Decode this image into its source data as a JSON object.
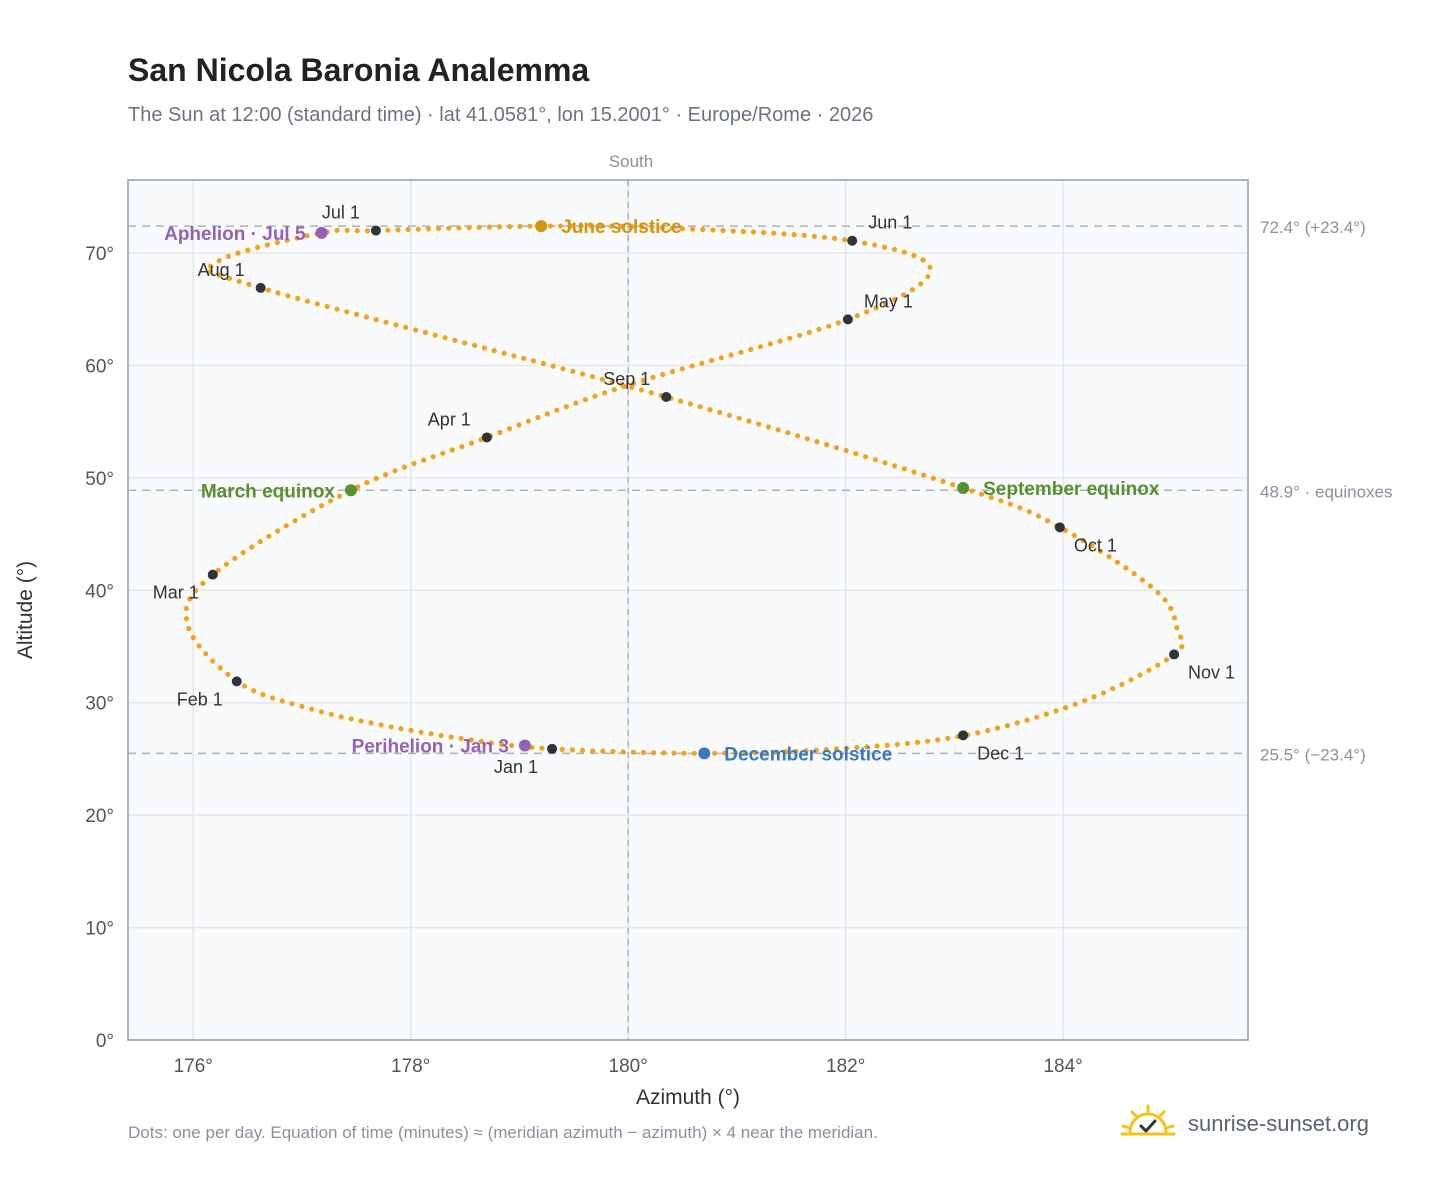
{
  "title": "San Nicola Baronia Analemma",
  "subtitle": "The Sun at 12:00 (standard time) · lat 41.0581°, lon 15.2001° · Europe/Rome · 2026",
  "footnote": "Dots: one per day. Equation of time (minutes) ≈ (meridian azimuth − azimuth) × 4 near the meridian.",
  "brand": {
    "name": "sunrise-sunset.org",
    "icon": "sun-check-icon"
  },
  "colors": {
    "curve": "#f2a31c",
    "month_dot": "#2f343b",
    "equinox": "#5a8f2e",
    "june_solstice": "#d4950c",
    "december_solstice": "#3a78c0",
    "aphelion_perihelion": "#9461b8",
    "plot_bg": "#f8fafc",
    "grid": "#e3e7ec",
    "frame": "#9aa3af"
  },
  "chart_data": {
    "type": "scatter",
    "xlabel": "Azimuth (°)",
    "ylabel": "Altitude (°)",
    "xlim": [
      175.4,
      185.7
    ],
    "ylim": [
      0,
      76.5
    ],
    "x_ticks": [
      "176°",
      "178°",
      "180°",
      "182°",
      "184°"
    ],
    "x_tick_values": [
      176,
      178,
      180,
      182,
      184
    ],
    "y_ticks": [
      "0°",
      "10°",
      "20°",
      "30°",
      "40°",
      "50°",
      "60°",
      "70°"
    ],
    "y_tick_values": [
      0,
      10,
      20,
      30,
      40,
      50,
      60,
      70
    ],
    "grid": true,
    "south_label": "South",
    "meridian_azimuth": 180,
    "reference_lines": [
      {
        "altitude": 72.4,
        "label": "72.4° (+23.4°)"
      },
      {
        "altitude": 48.9,
        "label": "48.9° · equinoxes"
      },
      {
        "altitude": 25.5,
        "label": "25.5° (−23.4°)"
      }
    ],
    "curve_anchors": [
      [
        179.3,
        25.9
      ],
      [
        178.55,
        26.7
      ],
      [
        177.8,
        27.9
      ],
      [
        177.1,
        29.4
      ],
      [
        176.42,
        31.8
      ],
      [
        175.95,
        36.9
      ],
      [
        176.18,
        41.4
      ],
      [
        177.45,
        48.9
      ],
      [
        178.7,
        53.6
      ],
      [
        179.98,
        58.2
      ],
      [
        182.02,
        64.1
      ],
      [
        182.78,
        68.5
      ],
      [
        182.05,
        71.1
      ],
      [
        180.45,
        72.2
      ],
      [
        179.2,
        72.4
      ],
      [
        177.68,
        72.0
      ],
      [
        177.18,
        71.8
      ],
      [
        176.22,
        69.2
      ],
      [
        176.62,
        66.9
      ],
      [
        180.35,
        57.2
      ],
      [
        183.08,
        49.1
      ],
      [
        183.97,
        45.6
      ],
      [
        184.85,
        40.0
      ],
      [
        185.05,
        36.5
      ],
      [
        185.02,
        34.3
      ],
      [
        184.2,
        30.2
      ],
      [
        183.1,
        27.1
      ],
      [
        181.92,
        25.9
      ],
      [
        180.7,
        25.5
      ],
      [
        179.3,
        25.9
      ]
    ],
    "month_markers": [
      {
        "label": "Jan 1",
        "az": 179.3,
        "alt": 25.9,
        "anchor": "below-left"
      },
      {
        "label": "Feb 1",
        "az": 176.4,
        "alt": 31.9,
        "anchor": "below-left"
      },
      {
        "label": "Mar 1",
        "az": 176.18,
        "alt": 41.4,
        "anchor": "below-left"
      },
      {
        "label": "Apr 1",
        "az": 178.7,
        "alt": 53.6,
        "anchor": "above-left"
      },
      {
        "label": "May 1",
        "az": 182.02,
        "alt": 64.1,
        "anchor": "above-right"
      },
      {
        "label": "Jun 1",
        "az": 182.06,
        "alt": 71.1,
        "anchor": "above-right"
      },
      {
        "label": "Jul 1",
        "az": 177.68,
        "alt": 72.0,
        "anchor": "above-left"
      },
      {
        "label": "Aug 1",
        "az": 176.62,
        "alt": 66.9,
        "anchor": "above-left"
      },
      {
        "label": "Sep 1",
        "az": 180.35,
        "alt": 57.2,
        "anchor": "above-left"
      },
      {
        "label": "Oct 1",
        "az": 183.97,
        "alt": 45.6,
        "anchor": "below-right"
      },
      {
        "label": "Nov 1",
        "az": 185.02,
        "alt": 34.3,
        "anchor": "below-right"
      },
      {
        "label": "Dec 1",
        "az": 183.08,
        "alt": 27.1,
        "anchor": "below-right"
      }
    ],
    "events": [
      {
        "label": "June solstice",
        "az": 179.2,
        "alt": 72.4,
        "color_key": "june_solstice",
        "side": "right"
      },
      {
        "label": "December solstice",
        "az": 180.7,
        "alt": 25.5,
        "color_key": "december_solstice",
        "side": "right"
      },
      {
        "label": "March equinox",
        "az": 177.45,
        "alt": 48.9,
        "color_key": "equinox",
        "side": "left"
      },
      {
        "label": "September equinox",
        "az": 183.08,
        "alt": 49.1,
        "color_key": "equinox",
        "side": "right"
      },
      {
        "label": "Aphelion · Jul 5",
        "az": 177.18,
        "alt": 71.8,
        "color_key": "aphelion_perihelion",
        "side": "left"
      },
      {
        "label": "Perihelion · Jan 3",
        "az": 179.05,
        "alt": 26.2,
        "color_key": "aphelion_perihelion",
        "side": "left"
      }
    ]
  }
}
